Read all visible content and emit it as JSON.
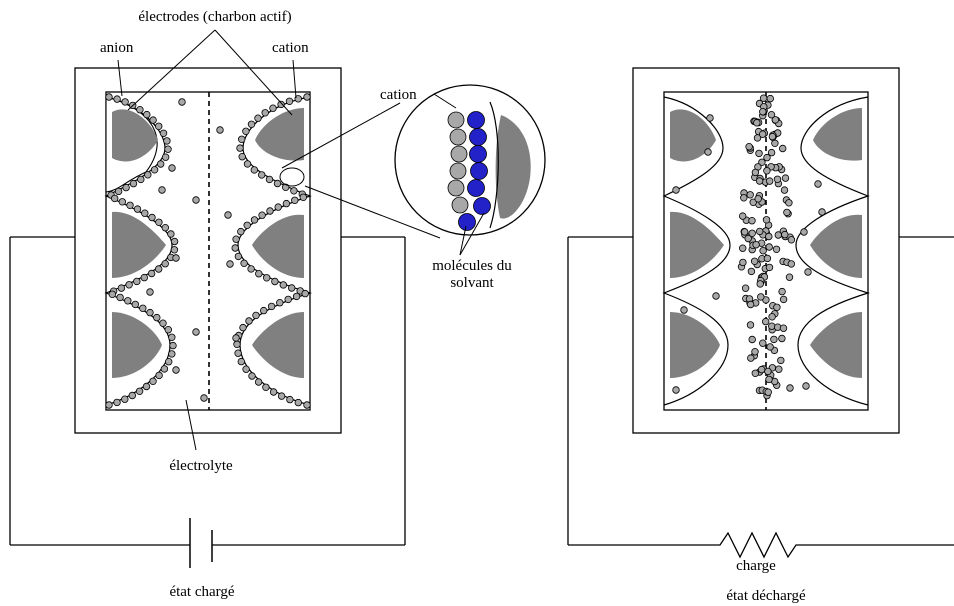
{
  "labels": {
    "electrodes": "électrodes (charbon actif)",
    "anion": "anion",
    "cation_top": "cation",
    "cation_zoom": "cation",
    "solvent_line1": "molécules du",
    "solvent_line2": "solvant",
    "electrolyte": "électrolyte",
    "state_charged": "état chargé",
    "load": "charge",
    "state_discharged": "état déchargé"
  },
  "colors": {
    "electrode_fill": "#808080",
    "ion_fill": "#a8a8a8",
    "solvent_fill": "#2222c8",
    "stroke": "#000000"
  }
}
